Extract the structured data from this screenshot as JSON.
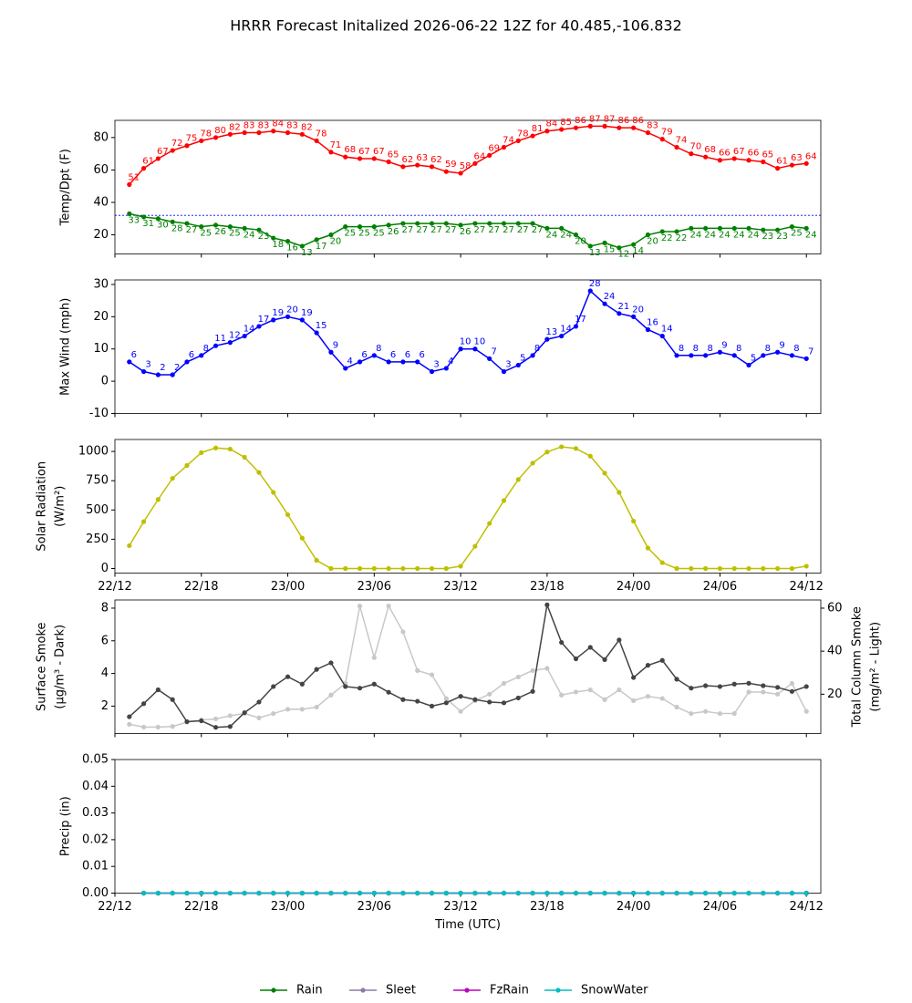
{
  "title": "HRRR Forecast Initalized 2026-06-22 12Z for 40.485,-106.832",
  "chart_data": [
    {
      "type": "line",
      "ylabel": [
        "Temp/Dpt (F)"
      ],
      "x": [
        1,
        2,
        3,
        4,
        5,
        6,
        7,
        8,
        9,
        10,
        11,
        12,
        13,
        14,
        15,
        16,
        17,
        18,
        19,
        20,
        21,
        22,
        23,
        24,
        25,
        26,
        27,
        28,
        29,
        30,
        31,
        32,
        33,
        34,
        35,
        36,
        37,
        38,
        39,
        40,
        41,
        42,
        43,
        44,
        45,
        46,
        47,
        48
      ],
      "xlim": [
        0,
        49
      ],
      "xticks": [
        0,
        6,
        12,
        18,
        24,
        30,
        36,
        42,
        48
      ],
      "ylim": [
        8.2,
        90.6
      ],
      "yticks": [
        20,
        40,
        60,
        80
      ],
      "hline": 32,
      "hline_color": "#0000ff",
      "series": [
        {
          "color": "#ff0000",
          "data_labels": true,
          "label_position": "above",
          "values": [
            51,
            61,
            67,
            72,
            75,
            78,
            80,
            82,
            83,
            83,
            84,
            83,
            82,
            78,
            71,
            68,
            67,
            67,
            65,
            62,
            63,
            62,
            59,
            58,
            64,
            69,
            74,
            78,
            81,
            84,
            85,
            86,
            87,
            87,
            86,
            86,
            83,
            79,
            74,
            70,
            68,
            66,
            67,
            66,
            65,
            61,
            63,
            64
          ]
        },
        {
          "color": "#008000",
          "data_labels": true,
          "label_position": "below",
          "values": [
            33,
            31,
            30,
            28,
            27,
            25,
            26,
            25,
            24,
            23,
            18,
            16,
            13,
            17,
            20,
            25,
            25,
            25,
            26,
            27,
            27,
            27,
            27,
            26,
            27,
            27,
            27,
            27,
            27,
            24,
            24,
            20,
            13,
            15,
            12,
            14,
            20,
            22,
            22,
            24,
            24,
            24,
            24,
            24,
            23,
            23,
            25,
            24
          ]
        }
      ]
    },
    {
      "type": "line",
      "ylabel": [
        "Max Wind (mph)"
      ],
      "x": [
        1,
        2,
        3,
        4,
        5,
        6,
        7,
        8,
        9,
        10,
        11,
        12,
        13,
        14,
        15,
        16,
        17,
        18,
        19,
        20,
        21,
        22,
        23,
        24,
        25,
        26,
        27,
        28,
        29,
        30,
        31,
        32,
        33,
        34,
        35,
        36,
        37,
        38,
        39,
        40,
        41,
        42,
        43,
        44,
        45,
        46,
        47,
        48
      ],
      "xlim": [
        0,
        49
      ],
      "xticks": [
        0,
        6,
        12,
        18,
        24,
        30,
        36,
        42,
        48
      ],
      "ylim": [
        -10,
        31.4
      ],
      "yticks": [
        -10,
        0,
        10,
        20,
        30
      ],
      "series": [
        {
          "color": "#0000ff",
          "data_labels": true,
          "label_position": "above",
          "values": [
            6,
            3,
            2,
            2,
            6,
            8,
            11,
            12,
            14,
            17,
            19,
            20,
            19,
            15,
            9,
            4,
            6,
            8,
            6,
            6,
            6,
            3,
            4,
            10,
            10,
            7,
            3,
            5,
            8,
            13,
            14,
            17,
            28,
            24,
            21,
            20,
            16,
            14,
            8,
            8,
            8,
            9,
            8,
            5,
            8,
            9,
            8,
            7
          ]
        }
      ]
    },
    {
      "type": "line",
      "ylabel": [
        "Solar Radiation",
        "(W/m²)"
      ],
      "x": [
        1,
        2,
        3,
        4,
        5,
        6,
        7,
        8,
        9,
        10,
        11,
        12,
        13,
        14,
        15,
        16,
        17,
        18,
        19,
        20,
        21,
        22,
        23,
        24,
        25,
        26,
        27,
        28,
        29,
        30,
        31,
        32,
        33,
        34,
        35,
        36,
        37,
        38,
        39,
        40,
        41,
        42,
        43,
        44,
        45,
        46,
        47,
        48
      ],
      "xlim": [
        0,
        49
      ],
      "xticks": [
        {
          "value": 0,
          "label": "22/12"
        },
        {
          "value": 6,
          "label": "22/18"
        },
        {
          "value": 12,
          "label": "23/00"
        },
        {
          "value": 18,
          "label": "23/06"
        },
        {
          "value": 24,
          "label": "23/12"
        },
        {
          "value": 30,
          "label": "23/18"
        },
        {
          "value": 36,
          "label": "24/00"
        },
        {
          "value": 42,
          "label": "24/06"
        },
        {
          "value": 48,
          "label": "24/12"
        }
      ],
      "ylim": [
        -39,
        1102
      ],
      "yticks": [
        0,
        250,
        500,
        750,
        1000
      ],
      "series": [
        {
          "color": "#bfbf00",
          "values": [
            195,
            400,
            590,
            770,
            880,
            990,
            1030,
            1020,
            950,
            820,
            650,
            460,
            260,
            70,
            0,
            0,
            0,
            0,
            0,
            0,
            0,
            0,
            0,
            20,
            190,
            385,
            580,
            760,
            900,
            995,
            1040,
            1025,
            960,
            815,
            650,
            405,
            175,
            50,
            0,
            0,
            0,
            0,
            0,
            0,
            0,
            0,
            0,
            20
          ]
        }
      ]
    },
    {
      "type": "line",
      "ylabel": [
        "Surface Smoke",
        "(μg/m³ - Dark)"
      ],
      "y2label": [
        "Total Column Smoke",
        "(mg/m² - Light)"
      ],
      "x": [
        1,
        2,
        3,
        4,
        5,
        6,
        7,
        8,
        9,
        10,
        11,
        12,
        13,
        14,
        15,
        16,
        17,
        18,
        19,
        20,
        21,
        22,
        23,
        24,
        25,
        26,
        27,
        28,
        29,
        30,
        31,
        32,
        33,
        34,
        35,
        36,
        37,
        38,
        39,
        40,
        41,
        42,
        43,
        44,
        45,
        46,
        47,
        48
      ],
      "xlim": [
        0,
        49
      ],
      "xticks": [
        0,
        6,
        12,
        18,
        24,
        30,
        36,
        42,
        48
      ],
      "ylim": [
        0.32,
        8.5
      ],
      "yticks": [
        2,
        4,
        6,
        8
      ],
      "y2lim": [
        1.7,
        63.8
      ],
      "y2ticks": [
        20,
        40,
        60
      ],
      "series": [
        {
          "color": "#c8c8c8",
          "axis": "y2",
          "values": [
            6,
            4.7,
            4.7,
            5,
            7,
            8,
            8.5,
            10,
            11,
            9,
            11,
            13,
            13,
            14,
            19.6,
            25,
            61,
            37,
            61,
            49,
            31,
            29,
            18,
            12,
            17,
            20,
            25,
            28,
            31,
            32,
            19.6,
            21,
            22,
            17.5,
            22,
            17,
            19,
            18,
            14,
            11,
            12,
            11,
            11,
            21,
            21,
            20,
            25,
            12
          ]
        },
        {
          "color": "#444444",
          "values": [
            1.35,
            2.15,
            3.0,
            2.4,
            1.05,
            1.1,
            0.7,
            0.75,
            1.6,
            2.25,
            3.2,
            3.8,
            3.35,
            4.25,
            4.65,
            3.2,
            3.1,
            3.35,
            2.85,
            2.4,
            2.3,
            2.0,
            2.2,
            2.6,
            2.4,
            2.25,
            2.2,
            2.5,
            2.9,
            8.2,
            5.9,
            4.9,
            5.6,
            4.85,
            6.05,
            3.75,
            4.5,
            4.8,
            3.65,
            3.1,
            3.25,
            3.2,
            3.35,
            3.4,
            3.25,
            3.15,
            2.9,
            3.2
          ]
        }
      ]
    },
    {
      "type": "line",
      "ylabel": [
        "Precip (in)"
      ],
      "xlabel": "Time (UTC)",
      "x": [
        2,
        3,
        4,
        5,
        6,
        7,
        8,
        9,
        10,
        11,
        12,
        13,
        14,
        15,
        16,
        17,
        18,
        19,
        20,
        21,
        22,
        23,
        24,
        25,
        26,
        27,
        28,
        29,
        30,
        31,
        32,
        33,
        34,
        35,
        36,
        37,
        38,
        39,
        40,
        41,
        42,
        43,
        44,
        45,
        46,
        47,
        48
      ],
      "xlim": [
        0,
        49
      ],
      "xticks": [
        {
          "value": 0,
          "label": "22/12"
        },
        {
          "value": 6,
          "label": "22/18"
        },
        {
          "value": 12,
          "label": "23/00"
        },
        {
          "value": 18,
          "label": "23/06"
        },
        {
          "value": 24,
          "label": "23/12"
        },
        {
          "value": 30,
          "label": "23/18"
        },
        {
          "value": 36,
          "label": "24/00"
        },
        {
          "value": 42,
          "label": "24/06"
        },
        {
          "value": 48,
          "label": "24/12"
        }
      ],
      "ylim": [
        0,
        0.05
      ],
      "yticks": [
        {
          "value": 0,
          "label": "0.00"
        },
        {
          "value": 0.01,
          "label": "0.01"
        },
        {
          "value": 0.02,
          "label": "0.02"
        },
        {
          "value": 0.03,
          "label": "0.03"
        },
        {
          "value": 0.04,
          "label": "0.04"
        },
        {
          "value": 0.05,
          "label": "0.05"
        }
      ],
      "series": [
        {
          "name": "Rain",
          "color": "#008000",
          "values": [
            0,
            0,
            0,
            0,
            0,
            0,
            0,
            0,
            0,
            0,
            0,
            0,
            0,
            0,
            0,
            0,
            0,
            0,
            0,
            0,
            0,
            0,
            0,
            0,
            0,
            0,
            0,
            0,
            0,
            0,
            0,
            0,
            0,
            0,
            0,
            0,
            0,
            0,
            0,
            0,
            0,
            0,
            0,
            0,
            0,
            0,
            0
          ]
        },
        {
          "name": "Sleet",
          "color": "#8c7ba6",
          "values": [
            0,
            0,
            0,
            0,
            0,
            0,
            0,
            0,
            0,
            0,
            0,
            0,
            0,
            0,
            0,
            0,
            0,
            0,
            0,
            0,
            0,
            0,
            0,
            0,
            0,
            0,
            0,
            0,
            0,
            0,
            0,
            0,
            0,
            0,
            0,
            0,
            0,
            0,
            0,
            0,
            0,
            0,
            0,
            0,
            0,
            0,
            0
          ]
        },
        {
          "name": "FzRain",
          "color": "#c000c0",
          "values": [
            0,
            0,
            0,
            0,
            0,
            0,
            0,
            0,
            0,
            0,
            0,
            0,
            0,
            0,
            0,
            0,
            0,
            0,
            0,
            0,
            0,
            0,
            0,
            0,
            0,
            0,
            0,
            0,
            0,
            0,
            0,
            0,
            0,
            0,
            0,
            0,
            0,
            0,
            0,
            0,
            0,
            0,
            0,
            0,
            0,
            0,
            0
          ]
        },
        {
          "name": "SnowWater",
          "color": "#00bfbf",
          "values": [
            0,
            0,
            0,
            0,
            0,
            0,
            0,
            0,
            0,
            0,
            0,
            0,
            0,
            0,
            0,
            0,
            0,
            0,
            0,
            0,
            0,
            0,
            0,
            0,
            0,
            0,
            0,
            0,
            0,
            0,
            0,
            0,
            0,
            0,
            0,
            0,
            0,
            0,
            0,
            0,
            0,
            0,
            0,
            0,
            0,
            0,
            0
          ]
        }
      ]
    }
  ]
}
